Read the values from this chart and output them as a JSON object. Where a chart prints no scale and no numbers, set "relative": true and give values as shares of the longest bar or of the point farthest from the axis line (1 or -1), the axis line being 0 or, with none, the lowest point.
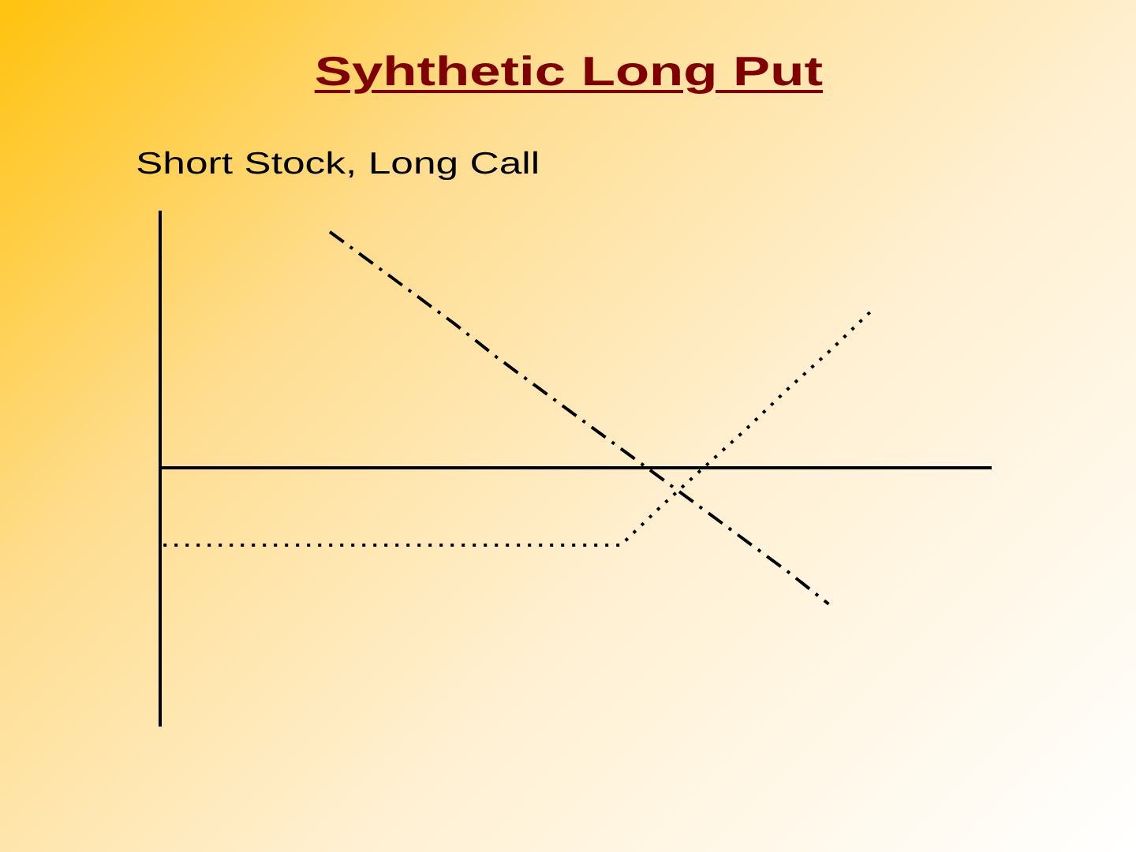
{
  "chart_data": {
    "type": "line",
    "title": "Syhthetic Long Put",
    "subtitle": "Short Stock, Long Call",
    "relative": true,
    "marker": "none",
    "categories": [
      null,
      null,
      null,
      null,
      null,
      null,
      null,
      null,
      null,
      null,
      null,
      null,
      null,
      null,
      null,
      null,
      null,
      null,
      null,
      null
    ],
    "series": [
      {
        "color": "#000000",
        "line_style": "dashdot",
        "values": [
          null,
          null,
          null,
          null,
          1.0,
          0.87,
          0.74,
          0.61,
          0.47,
          0.34,
          0.21,
          0.08,
          -0.05,
          -0.18,
          -0.31,
          -0.44,
          -0.58,
          null,
          null,
          null
        ]
      },
      {
        "color": "#000000",
        "line_style": "dotted",
        "values": [
          -0.33,
          -0.33,
          -0.33,
          -0.33,
          -0.33,
          -0.33,
          -0.33,
          -0.33,
          -0.33,
          -0.33,
          -0.33,
          -0.33,
          -0.16,
          0,
          0.16,
          0.33,
          0.49,
          0.66,
          null,
          null
        ]
      }
    ]
  }
}
